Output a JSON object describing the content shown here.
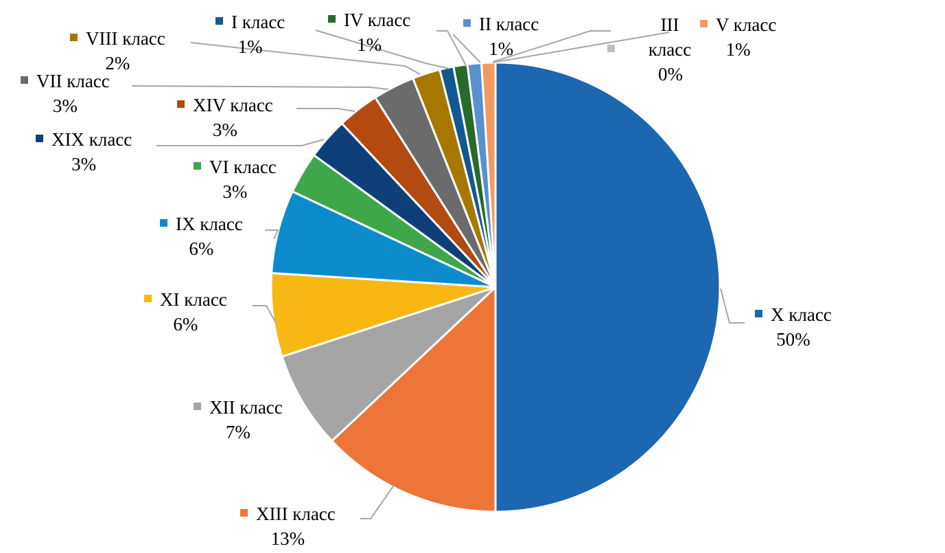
{
  "chart_data": {
    "type": "pie",
    "start": "top",
    "direction": "clockwise",
    "legend": "data labels next to slices",
    "slices": [
      {
        "name": "X класс",
        "value": 50,
        "label": "50%",
        "color": "#1d66b0"
      },
      {
        "name": "XIII класс",
        "value": 13,
        "label": "13%",
        "color": "#ec7537"
      },
      {
        "name": "XII класс",
        "value": 7,
        "label": "7%",
        "color": "#a5a5a5"
      },
      {
        "name": "XI класс",
        "value": 6,
        "label": "6%",
        "color": "#f8b814"
      },
      {
        "name": "IX класс",
        "value": 6,
        "label": "6%",
        "color": "#0d8ccd"
      },
      {
        "name": "VI класс",
        "value": 3,
        "label": "3%",
        "color": "#3fa64a"
      },
      {
        "name": "XIX класс",
        "value": 3,
        "label": "3%",
        "color": "#0e3f78"
      },
      {
        "name": "XIV класс",
        "value": 3,
        "label": "3%",
        "color": "#b24a11"
      },
      {
        "name": "VII класс",
        "value": 3,
        "label": "3%",
        "color": "#6b6b6b"
      },
      {
        "name": "VIII класс",
        "value": 2,
        "label": "2%",
        "color": "#a77800"
      },
      {
        "name": "I класс",
        "value": 1,
        "label": "1%",
        "color": "#115a91"
      },
      {
        "name": "IV класс",
        "value": 1,
        "label": "1%",
        "color": "#286a2c"
      },
      {
        "name": "II класс",
        "value": 1,
        "label": "1%",
        "color": "#5a8fd0"
      },
      {
        "name": "III класс",
        "value": 0,
        "label": "0%",
        "color": "#c0c0c0"
      },
      {
        "name": "V класс",
        "value": 1,
        "label": "1%",
        "color": "#f39a62"
      }
    ]
  }
}
